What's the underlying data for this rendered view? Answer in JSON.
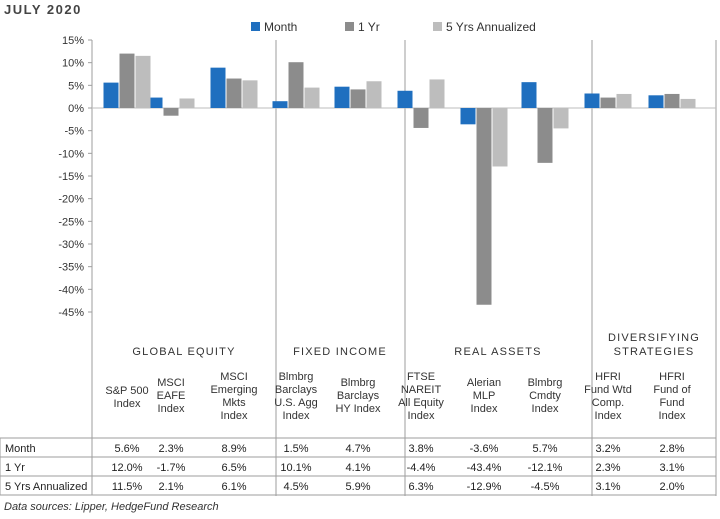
{
  "title": "JULY 2020",
  "source": "Data sources: Lipper, HedgeFund Research",
  "legend": [
    {
      "label": "Month",
      "color": "#1f6fbf"
    },
    {
      "label": "1 Yr",
      "color": "#8c8c8c"
    },
    {
      "label": "5 Yrs Annualized",
      "color": "#bdbdbd"
    }
  ],
  "groups": [
    {
      "label": "GLOBAL EQUITY",
      "lines": [
        "GLOBAL EQUITY"
      ]
    },
    {
      "label": "FIXED INCOME",
      "lines": [
        "FIXED INCOME"
      ]
    },
    {
      "label": "REAL ASSETS",
      "lines": [
        "REAL ASSETS"
      ]
    },
    {
      "label": "DIVERSIFYING STRATEGIES",
      "lines": [
        "DIVERSIFYING",
        "STRATEGIES"
      ]
    }
  ],
  "chart_data": {
    "type": "bar",
    "ylim": [
      -45,
      15
    ],
    "yticks": [
      15,
      10,
      5,
      0,
      -5,
      -10,
      -15,
      -20,
      -25,
      -30,
      -35,
      -40,
      -45
    ],
    "grid": false,
    "legend_position": "top",
    "categories": [
      {
        "lines": [
          "S&P 500",
          "Index"
        ],
        "group": 0
      },
      {
        "lines": [
          "MSCI",
          "EAFE",
          "Index"
        ],
        "group": 0
      },
      {
        "lines": [
          "MSCI",
          "Emerging",
          "Mkts",
          "Index"
        ],
        "group": 0
      },
      {
        "lines": [
          "Blmbrg",
          "Barclays",
          "U.S. Agg",
          "Index"
        ],
        "group": 1
      },
      {
        "lines": [
          "Blmbrg",
          "Barclays",
          "HY Index"
        ],
        "group": 1
      },
      {
        "lines": [
          "FTSE",
          "NAREIT",
          "All Equity",
          "Index"
        ],
        "group": 2
      },
      {
        "lines": [
          "Alerian",
          "MLP",
          "Index"
        ],
        "group": 2
      },
      {
        "lines": [
          "Blmbrg",
          "Cmdty",
          "Index"
        ],
        "group": 2
      },
      {
        "lines": [
          "HFRI",
          "Fund Wtd",
          "Comp.",
          "Index"
        ],
        "group": 3
      },
      {
        "lines": [
          "HFRI",
          "Fund of",
          "Fund",
          "Index"
        ],
        "group": 3
      }
    ],
    "series": [
      {
        "name": "Month",
        "values": [
          5.6,
          2.3,
          8.9,
          1.5,
          4.7,
          3.8,
          -3.6,
          5.7,
          3.2,
          2.8
        ]
      },
      {
        "name": "1 Yr",
        "values": [
          12.0,
          -1.7,
          6.5,
          10.1,
          4.1,
          -4.4,
          -43.4,
          -12.1,
          2.3,
          3.1
        ]
      },
      {
        "name": "5 Yrs Annualized",
        "values": [
          11.5,
          2.1,
          6.1,
          4.5,
          5.9,
          6.3,
          -12.9,
          -4.5,
          3.1,
          2.0
        ]
      }
    ],
    "table_rows": [
      {
        "label": "Month",
        "cells": [
          "5.6%",
          "2.3%",
          "8.9%",
          "1.5%",
          "4.7%",
          "3.8%",
          "-3.6%",
          "5.7%",
          "3.2%",
          "2.8%"
        ]
      },
      {
        "label": "1 Yr",
        "cells": [
          "12.0%",
          "-1.7%",
          "6.5%",
          "10.1%",
          "4.1%",
          "-4.4%",
          "-43.4%",
          "-12.1%",
          "2.3%",
          "3.1%"
        ]
      },
      {
        "label": "5 Yrs Annualized",
        "cells": [
          "11.5%",
          "2.1%",
          "6.1%",
          "4.5%",
          "5.9%",
          "6.3%",
          "-12.9%",
          "-4.5%",
          "3.1%",
          "2.0%"
        ]
      }
    ]
  }
}
